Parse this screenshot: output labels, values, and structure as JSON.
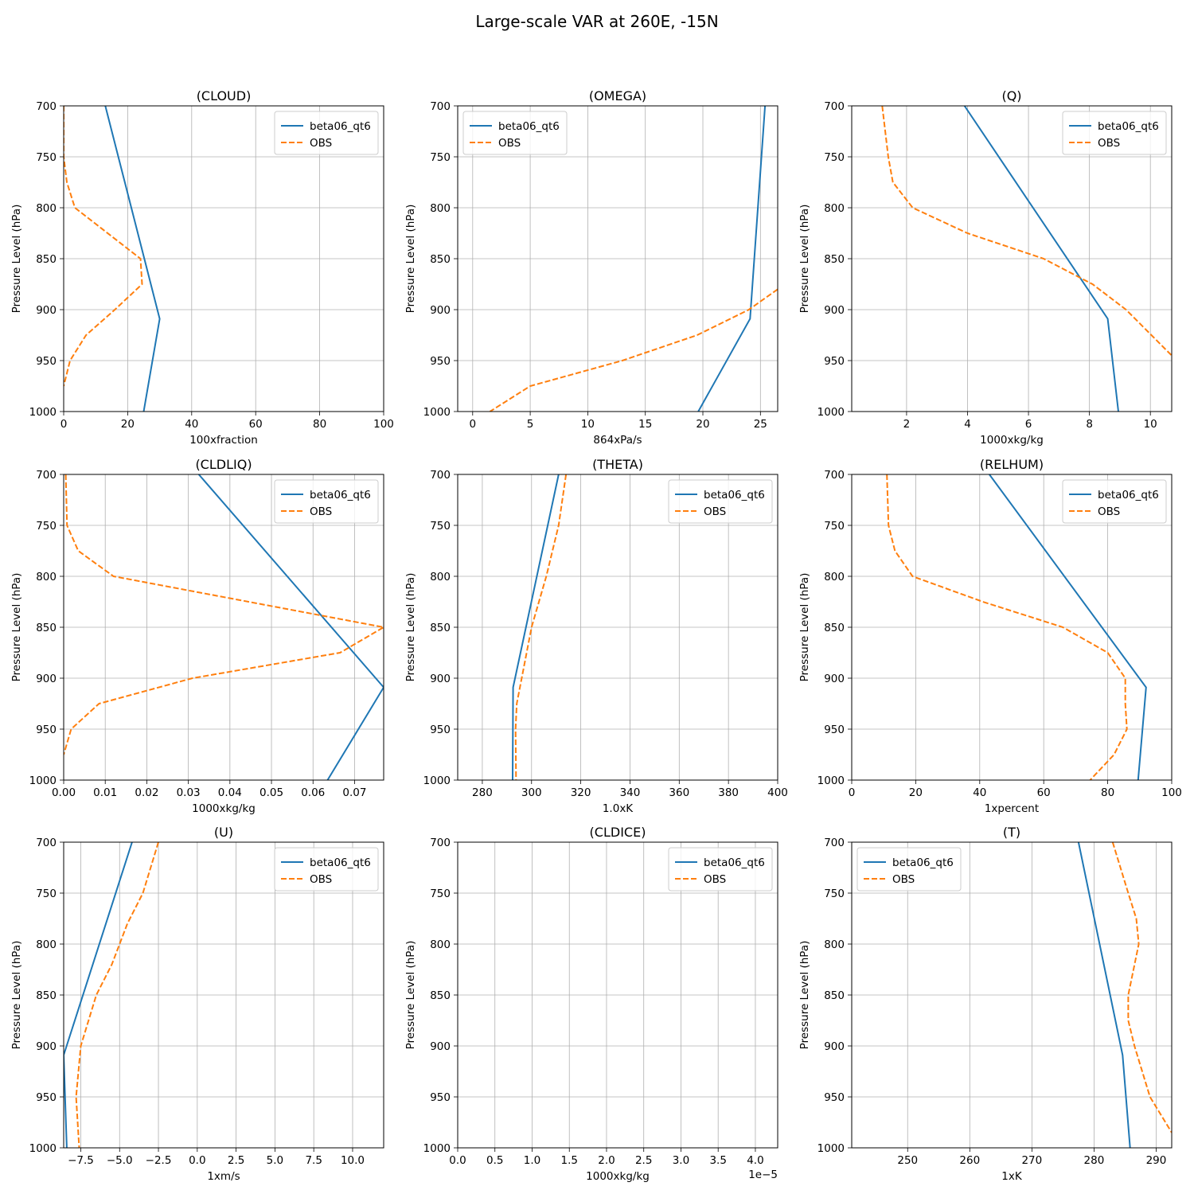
{
  "figure": {
    "title": "Large-scale VAR at 260E, -15N"
  },
  "series_colors": {
    "beta06_qt6": "#1f77b4",
    "OBS": "#ff7f0e"
  },
  "chart_data": [
    {
      "type": "line",
      "title": "(CLOUD)",
      "xlabel": "100xfraction",
      "ylabel": "Pressure Level (hPa)",
      "xlim": [
        0,
        100
      ],
      "ylim": [
        1000,
        700
      ],
      "grid": true,
      "legend": "upper right",
      "xticks": [
        0,
        20,
        40,
        60,
        80,
        100
      ],
      "xtick_labels": [
        "0",
        "20",
        "40",
        "60",
        "80",
        "100"
      ],
      "yticks": [
        700,
        750,
        800,
        850,
        900,
        950,
        1000
      ],
      "ytick_labels": [
        "700",
        "750",
        "800",
        "850",
        "900",
        "950",
        "1000"
      ],
      "series": [
        {
          "name": "beta06_qt6",
          "style": "solid",
          "x": [
            13,
            30,
            25
          ],
          "y": [
            700,
            909,
            1000
          ]
        },
        {
          "name": "OBS",
          "style": "dashed",
          "x": [
            0,
            0,
            1,
            3.5,
            24,
            24.5,
            16,
            7,
            2,
            0
          ],
          "y": [
            700,
            750,
            775,
            800,
            850,
            875,
            900,
            925,
            950,
            975
          ]
        }
      ]
    },
    {
      "type": "line",
      "title": "(OMEGA)",
      "xlabel": "864xPa/s",
      "ylabel": "Pressure Level (hPa)",
      "xlim": [
        -1.3,
        26.5
      ],
      "ylim": [
        1000,
        700
      ],
      "grid": true,
      "legend": "upper left",
      "xticks": [
        0,
        5,
        10,
        15,
        20,
        25
      ],
      "xtick_labels": [
        "0",
        "5",
        "10",
        "15",
        "20",
        "25"
      ],
      "yticks": [
        700,
        750,
        800,
        850,
        900,
        950,
        1000
      ],
      "ytick_labels": [
        "700",
        "750",
        "800",
        "850",
        "900",
        "950",
        "1000"
      ],
      "series": [
        {
          "name": "beta06_qt6",
          "style": "solid",
          "x": [
            25.4,
            24.1,
            19.6
          ],
          "y": [
            700,
            909,
            1000
          ]
        },
        {
          "name": "OBS",
          "style": "dashed",
          "x": [
            26.5,
            24,
            19.5,
            13,
            5,
            1.5
          ],
          "y": [
            880,
            900,
            925,
            950,
            975,
            1000
          ]
        }
      ]
    },
    {
      "type": "line",
      "title": "(Q)",
      "xlabel": "1000xkg/kg",
      "ylabel": "Pressure Level (hPa)",
      "xlim": [
        0.2,
        10.7
      ],
      "ylim": [
        1000,
        700
      ],
      "grid": true,
      "legend": "upper right",
      "xticks": [
        2,
        4,
        6,
        8,
        10
      ],
      "xtick_labels": [
        "2",
        "4",
        "6",
        "8",
        "10"
      ],
      "yticks": [
        700,
        750,
        800,
        850,
        900,
        950,
        1000
      ],
      "ytick_labels": [
        "700",
        "750",
        "800",
        "850",
        "900",
        "950",
        "1000"
      ],
      "series": [
        {
          "name": "beta06_qt6",
          "style": "solid",
          "x": [
            3.9,
            8.6,
            8.95
          ],
          "y": [
            700,
            909,
            1000
          ]
        },
        {
          "name": "OBS",
          "style": "dashed",
          "x": [
            1.2,
            1.4,
            1.55,
            2.2,
            4,
            6.5,
            8.1,
            9.2,
            10.7
          ],
          "y": [
            700,
            750,
            775,
            800,
            825,
            850,
            875,
            900,
            945
          ]
        }
      ]
    },
    {
      "type": "line",
      "title": "(CLDLIQ)",
      "xlabel": "1000xkg/kg",
      "ylabel": "Pressure Level (hPa)",
      "xlim": [
        0,
        0.077
      ],
      "ylim": [
        1000,
        700
      ],
      "grid": true,
      "legend": "upper right",
      "xticks": [
        0,
        0.01,
        0.02,
        0.03,
        0.04,
        0.05,
        0.06,
        0.07
      ],
      "xtick_labels": [
        "0.00",
        "0.01",
        "0.02",
        "0.03",
        "0.04",
        "0.05",
        "0.06",
        "0.07"
      ],
      "yticks": [
        700,
        750,
        800,
        850,
        900,
        950,
        1000
      ],
      "ytick_labels": [
        "700",
        "750",
        "800",
        "850",
        "900",
        "950",
        "1000"
      ],
      "series": [
        {
          "name": "beta06_qt6",
          "style": "solid",
          "x": [
            0.0325,
            0.077,
            0.0635
          ],
          "y": [
            700,
            909,
            1000
          ]
        },
        {
          "name": "OBS",
          "style": "dashed",
          "x": [
            0.0005,
            0.0008,
            0.0035,
            0.012,
            0.077,
            0.0665,
            0.031,
            0.0085,
            0.0018,
            0
          ],
          "y": [
            700,
            750,
            775,
            800,
            850,
            875,
            900,
            925,
            950,
            975
          ]
        }
      ]
    },
    {
      "type": "line",
      "title": "(THETA)",
      "xlabel": "1.0xK",
      "ylabel": "Pressure Level (hPa)",
      "xlim": [
        270,
        400
      ],
      "ylim": [
        1000,
        700
      ],
      "grid": true,
      "legend": "upper right",
      "xticks": [
        280,
        300,
        320,
        340,
        360,
        380,
        400
      ],
      "xtick_labels": [
        "280",
        "300",
        "320",
        "340",
        "360",
        "380",
        "400"
      ],
      "yticks": [
        700,
        750,
        800,
        850,
        900,
        950,
        1000
      ],
      "ytick_labels": [
        "700",
        "750",
        "800",
        "850",
        "900",
        "950",
        "1000"
      ],
      "series": [
        {
          "name": "beta06_qt6",
          "style": "solid",
          "x": [
            311,
            292.5,
            292.3
          ],
          "y": [
            700,
            909,
            1000
          ]
        },
        {
          "name": "OBS",
          "style": "dashed",
          "x": [
            314,
            311,
            306,
            300,
            296,
            294,
            293.5,
            293.7
          ],
          "y": [
            700,
            750,
            800,
            850,
            900,
            925,
            950,
            1000
          ]
        }
      ]
    },
    {
      "type": "line",
      "title": "(RELHUM)",
      "xlabel": "1xpercent",
      "ylabel": "Pressure Level (hPa)",
      "xlim": [
        0,
        100
      ],
      "ylim": [
        1000,
        700
      ],
      "grid": true,
      "legend": "upper right",
      "xticks": [
        0,
        20,
        40,
        60,
        80,
        100
      ],
      "xtick_labels": [
        "0",
        "20",
        "40",
        "60",
        "80",
        "100"
      ],
      "yticks": [
        700,
        750,
        800,
        850,
        900,
        950,
        1000
      ],
      "ytick_labels": [
        "700",
        "750",
        "800",
        "850",
        "900",
        "950",
        "1000"
      ],
      "series": [
        {
          "name": "beta06_qt6",
          "style": "solid",
          "x": [
            43,
            92,
            89.5
          ],
          "y": [
            700,
            909,
            1000
          ]
        },
        {
          "name": "OBS",
          "style": "dashed",
          "x": [
            11,
            11.5,
            13.5,
            19,
            41,
            66,
            80,
            85.5,
            85.5,
            86,
            82,
            74.5
          ],
          "y": [
            700,
            750,
            775,
            800,
            825,
            850,
            875,
            900,
            925,
            950,
            975,
            1000
          ]
        }
      ]
    },
    {
      "type": "line",
      "title": "(U)",
      "xlabel": "1xm/s",
      "ylabel": "Pressure Level (hPa)",
      "xlim": [
        -8.6,
        12
      ],
      "ylim": [
        1000,
        700
      ],
      "grid": true,
      "legend": "upper right",
      "xticks": [
        -7.5,
        -5,
        -2.5,
        0,
        2.5,
        5,
        7.5,
        10
      ],
      "xtick_labels": [
        "−7.5",
        "−5.0",
        "−2.5",
        "0.0",
        "2.5",
        "5.0",
        "7.5",
        "10.0"
      ],
      "yticks": [
        700,
        750,
        800,
        850,
        900,
        950,
        1000
      ],
      "ytick_labels": [
        "700",
        "750",
        "800",
        "850",
        "900",
        "950",
        "1000"
      ],
      "series": [
        {
          "name": "beta06_qt6",
          "style": "solid",
          "x": [
            -4.2,
            -8.6,
            -8.4
          ],
          "y": [
            700,
            909,
            1000
          ]
        },
        {
          "name": "OBS",
          "style": "dashed",
          "x": [
            -2.5,
            -3.5,
            -4.5,
            -5.5,
            -6.5,
            -7.5,
            -7.8,
            -7.6
          ],
          "y": [
            700,
            750,
            780,
            820,
            850,
            900,
            950,
            1000
          ]
        }
      ]
    },
    {
      "type": "line",
      "title": "(CLDICE)",
      "xlabel": "1000xkg/kg",
      "ylabel": "Pressure Level (hPa)",
      "xlim": [
        0,
        4.3
      ],
      "ylim": [
        1000,
        700
      ],
      "grid": true,
      "legend": "upper right",
      "x_scale_label": "1e−5",
      "xticks": [
        0,
        0.5,
        1,
        1.5,
        2,
        2.5,
        3,
        3.5,
        4
      ],
      "xtick_labels": [
        "0.0",
        "0.5",
        "1.0",
        "1.5",
        "2.0",
        "2.5",
        "3.0",
        "3.5",
        "4.0"
      ],
      "yticks": [
        700,
        750,
        800,
        850,
        900,
        950,
        1000
      ],
      "ytick_labels": [
        "700",
        "750",
        "800",
        "850",
        "900",
        "950",
        "1000"
      ],
      "series": [
        {
          "name": "beta06_qt6",
          "style": "solid",
          "x": [],
          "y": []
        },
        {
          "name": "OBS",
          "style": "dashed",
          "x": [],
          "y": []
        }
      ]
    },
    {
      "type": "line",
      "title": "(T)",
      "xlabel": "1xK",
      "ylabel": "Pressure Level (hPa)",
      "xlim": [
        241,
        292.5
      ],
      "ylim": [
        1000,
        700
      ],
      "grid": true,
      "legend": "upper left",
      "xticks": [
        250,
        260,
        270,
        280,
        290
      ],
      "xtick_labels": [
        "250",
        "260",
        "270",
        "280",
        "290"
      ],
      "yticks": [
        700,
        750,
        800,
        850,
        900,
        950,
        1000
      ],
      "ytick_labels": [
        "700",
        "750",
        "800",
        "850",
        "900",
        "950",
        "1000"
      ],
      "series": [
        {
          "name": "beta06_qt6",
          "style": "solid",
          "x": [
            277.5,
            284.6,
            285.8
          ],
          "y": [
            700,
            909,
            1000
          ]
        },
        {
          "name": "OBS",
          "style": "dashed",
          "x": [
            283,
            285.5,
            286.8,
            287.2,
            285.5,
            285.5,
            286.5,
            289,
            292.5
          ],
          "y": [
            700,
            750,
            775,
            800,
            850,
            875,
            900,
            950,
            985
          ]
        }
      ]
    }
  ]
}
